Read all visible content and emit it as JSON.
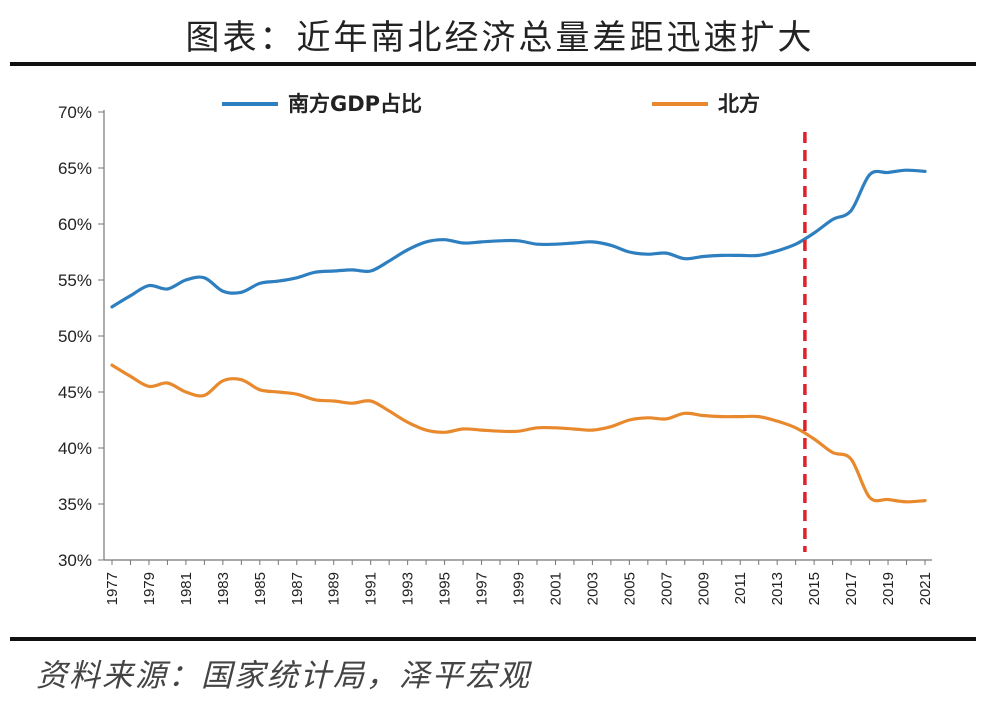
{
  "page_title": "图表：近年南北经济总量差距迅速扩大",
  "source_text": "资料来源：国家统计局，泽平宏观",
  "chart_data": {
    "type": "line",
    "y_ticks": [
      "30%",
      "35%",
      "40%",
      "45%",
      "50%",
      "55%",
      "60%",
      "65%",
      "70%"
    ],
    "ylim": [
      30,
      70
    ],
    "x_ticks": [
      "1977",
      "1979",
      "1981",
      "1983",
      "1985",
      "1987",
      "1989",
      "1991",
      "1993",
      "1995",
      "1997",
      "1999",
      "2001",
      "2003",
      "2005",
      "2007",
      "2009",
      "2011",
      "2013",
      "2015",
      "2017",
      "2019",
      "2021"
    ],
    "x": [
      1977,
      1978,
      1979,
      1980,
      1981,
      1982,
      1983,
      1984,
      1985,
      1986,
      1987,
      1988,
      1989,
      1990,
      1991,
      1992,
      1993,
      1994,
      1995,
      1996,
      1997,
      1998,
      1999,
      2000,
      2001,
      2002,
      2003,
      2004,
      2005,
      2006,
      2007,
      2008,
      2009,
      2010,
      2011,
      2012,
      2013,
      2014,
      2015,
      2016,
      2017,
      2018,
      2019,
      2020,
      2021
    ],
    "marker_year": 2014.5,
    "marker_color": "#e0202a",
    "series": [
      {
        "name": "南方GDP占比",
        "color": "#2e7fc0",
        "values": [
          52.6,
          53.6,
          54.5,
          54.2,
          55.0,
          55.2,
          54.0,
          53.9,
          54.7,
          54.9,
          55.2,
          55.7,
          55.8,
          55.9,
          55.8,
          56.7,
          57.7,
          58.4,
          58.6,
          58.3,
          58.4,
          58.5,
          58.5,
          58.2,
          58.2,
          58.3,
          58.4,
          58.1,
          57.5,
          57.3,
          57.4,
          56.9,
          57.1,
          57.2,
          57.2,
          57.2,
          57.6,
          58.2,
          59.2,
          60.4,
          61.2,
          64.4,
          64.6,
          64.8,
          64.7
        ]
      },
      {
        "name": "北方",
        "color": "#e8892e",
        "values": [
          47.4,
          46.4,
          45.5,
          45.8,
          45.0,
          44.7,
          46.0,
          46.1,
          45.2,
          45.0,
          44.8,
          44.3,
          44.2,
          44.0,
          44.2,
          43.3,
          42.3,
          41.6,
          41.4,
          41.7,
          41.6,
          41.5,
          41.5,
          41.8,
          41.8,
          41.7,
          41.6,
          41.9,
          42.5,
          42.7,
          42.6,
          43.1,
          42.9,
          42.8,
          42.8,
          42.8,
          42.4,
          41.8,
          40.8,
          39.6,
          39.0,
          35.6,
          35.4,
          35.2,
          35.3
        ]
      }
    ]
  }
}
